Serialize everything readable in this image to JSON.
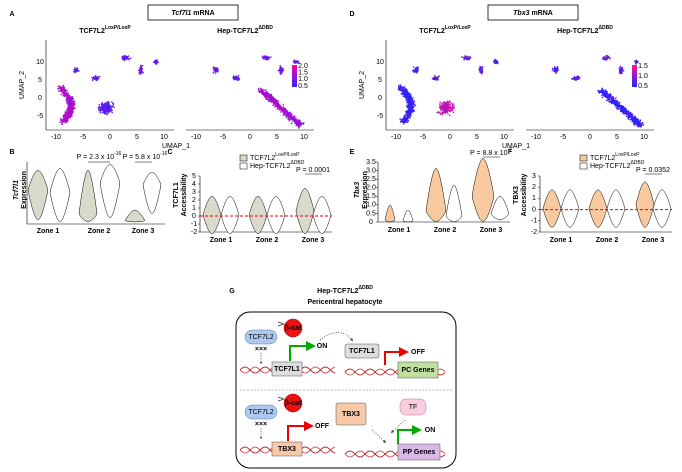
{
  "panel_a": {
    "letter": "A",
    "title_gene": "Tcf7l1",
    "title_rest": " mRNA",
    "control": {
      "base": "TCF7L2",
      "sup": "LoxP/LoxP"
    },
    "mutant": {
      "base": "Hep-TCF7L2",
      "sup": "ΔDBD"
    },
    "x_label": "UMAP_1",
    "y_label": "UMAP_2",
    "x_ticks": [
      "-10",
      "-5",
      "0",
      "5",
      "10"
    ],
    "y_ticks": [
      "10",
      "5",
      "0",
      "-5"
    ],
    "scale_ticks": [
      "2.0",
      "1.5",
      "1.0",
      "0.5"
    ]
  },
  "panel_b": {
    "letter": "B",
    "y_label_gene": "Tcf7l1",
    "y_label_rest": "Expression",
    "zones": [
      "Zone 1",
      "Zone 2",
      "Zone 3"
    ],
    "p_values": [
      {
        "base": "P = 2.3 x 10",
        "sup": "-16"
      },
      {
        "base": "P = 5.8 x 10",
        "sup": "-16"
      }
    ]
  },
  "panel_c": {
    "letter": "C",
    "y_label": [
      "TCF7L1",
      "Accessibility"
    ],
    "y_ticks": [
      "5",
      "4",
      "3",
      "2",
      "1",
      "0",
      "-1",
      "-2"
    ],
    "zones": [
      "Zone 1",
      "Zone 2",
      "Zone 3"
    ],
    "legend": [
      {
        "base": "TCF7L2",
        "sup": "LoxP/LoxP"
      },
      {
        "base": "Hep-TCF7L2",
        "sup": "ΔDBD"
      }
    ],
    "p_value": "P = 0.0001"
  },
  "panel_d": {
    "letter": "D",
    "title_gene": "Tbx3",
    "title_rest": " mRNA",
    "control": {
      "base": "TCF7L2",
      "sup": "LoxP/LoxP"
    },
    "mutant": {
      "base": "Hep-TCF7L2",
      "sup": "ΔDBD"
    },
    "x_label": "UMAP_1",
    "y_label": "UMAP_2",
    "x_ticks": [
      "-10",
      "-5",
      "0",
      "5",
      "10"
    ],
    "y_ticks": [
      "10",
      "5",
      "0",
      "-5"
    ],
    "scale_ticks": [
      "1.5",
      "1.0",
      "0.5"
    ]
  },
  "panel_e": {
    "letter": "E",
    "y_label_gene": "Tbx3",
    "y_label_rest": "Expression",
    "y_ticks": [
      "3.5",
      "3.0",
      "2.5",
      "2.0",
      "1.5",
      "1.0",
      "0.5",
      "0"
    ],
    "zones": [
      "Zone 1",
      "Zone 2",
      "Zone 3"
    ],
    "p_value": {
      "base": "P = 8.8 x 10",
      "sup": "-7"
    }
  },
  "panel_f": {
    "letter": "F",
    "y_label": [
      "TBX3",
      "Accessibility"
    ],
    "y_ticks": [
      "3",
      "2",
      "1",
      "0",
      "-1",
      "-2"
    ],
    "zones": [
      "Zone 1",
      "Zone 2",
      "Zone 3"
    ],
    "legend": [
      {
        "base": "TCF7L2",
        "sup": "LoxP/LoxP"
      },
      {
        "base": "Hep-TCF7L2",
        "sup": "ΔDBD"
      }
    ],
    "p_value": "P = 0.0352"
  },
  "panel_g": {
    "letter": "G",
    "title": {
      "base": "Hep-TCF7L2",
      "sup": "ΔDBD"
    },
    "subtitle": "Pericentral hepatocyte",
    "top": {
      "tcf7l2": "TCF7L2",
      "bcat": "β-cat",
      "gene": "TCF7L1",
      "on": "ON",
      "protein": "TCF7L1",
      "off": "OFF",
      "target": "PC Genes"
    },
    "bottom": {
      "tcf7l2": "TCF7L2",
      "bcat": "β-cat",
      "gene": "TBX3",
      "off": "OFF",
      "protein": "TBX3",
      "tf": "TF",
      "target": "PP Genes",
      "on": "ON"
    }
  }
}
